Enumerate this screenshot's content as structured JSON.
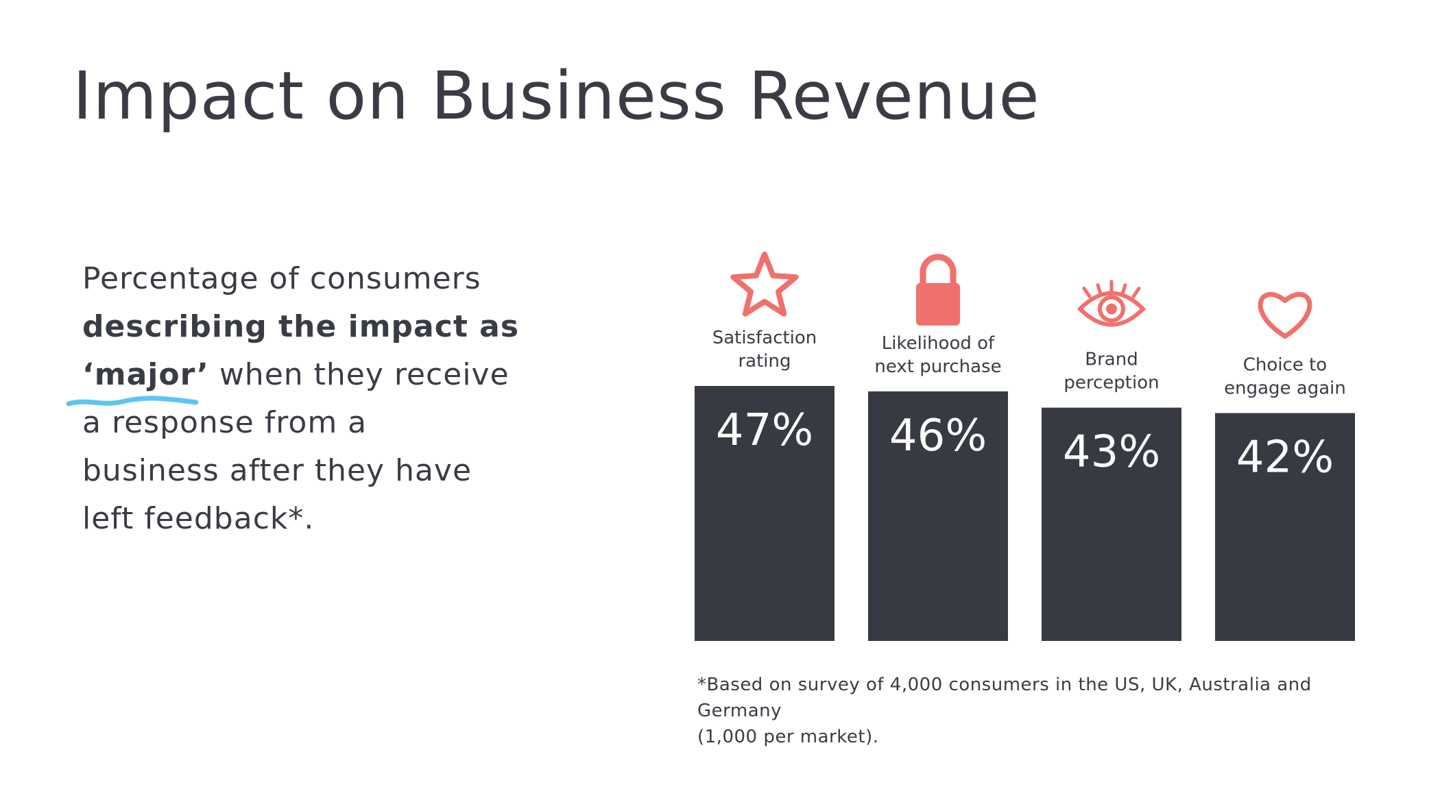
{
  "title": "Impact on Business Revenue",
  "description": {
    "line1": "Percentage of consumers",
    "line2_bold": "describing the impact as",
    "line3_bold": "‘major’",
    "line3_rest": " when they receive",
    "line4": "a response from a",
    "line5": "business after they have",
    "line6": "left feedback*."
  },
  "colors": {
    "bar": "#383a43",
    "icon": "#f0706b",
    "squiggle": "#5cc6ee",
    "text": "#3a3c45"
  },
  "footnote": {
    "line1": "*Based on survey of 4,000 consumers in the US, UK, Australia and Germany",
    "line2": "(1,000 per market)."
  },
  "chart_data": {
    "type": "bar",
    "categories": [
      [
        "Satisfaction",
        "rating"
      ],
      [
        "Likelihood of",
        "next purchase"
      ],
      [
        "Brand",
        "perception"
      ],
      [
        "Choice to",
        "engage again"
      ]
    ],
    "values": [
      47,
      46,
      43,
      42
    ],
    "value_labels": [
      "47%",
      "46%",
      "43%",
      "42%"
    ],
    "icons": [
      "star-icon",
      "padlock-icon",
      "eye-icon",
      "heart-icon"
    ],
    "unit": "%",
    "ylim": [
      0,
      47
    ],
    "grid": false,
    "legend": "none"
  }
}
